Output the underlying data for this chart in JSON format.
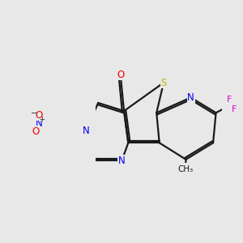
{
  "bg_color": "#e8e8e8",
  "bond_color": "#1a1a1a",
  "n_color": "#0000ee",
  "o_color": "#ee0000",
  "s_color": "#bbbb00",
  "f_color": "#dd00dd",
  "lw": 1.6,
  "fs": 8.5,
  "xlim": [
    -1.55,
    1.75
  ],
  "ylim": [
    -1.1,
    1.05
  ]
}
